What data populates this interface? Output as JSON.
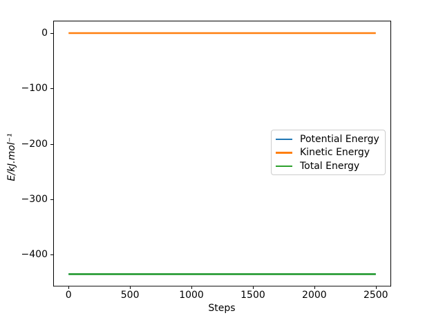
{
  "figure": {
    "background": "#ffffff",
    "spine_color": "#000000"
  },
  "chart_data": {
    "type": "line",
    "title": "",
    "xlabel": "Steps",
    "ylabel": "E/kJ.mol⁻¹",
    "xlim": [
      -125,
      2625
    ],
    "ylim": [
      -456.75,
      21.75
    ],
    "grid": false,
    "x": [
      0,
      2500
    ],
    "series": [
      {
        "name": "Potential Energy",
        "color": "#1f77b4",
        "values": [
          -435,
          -435
        ]
      },
      {
        "name": "Kinetic Energy",
        "color": "#ff7f0e",
        "values": [
          0,
          0
        ]
      },
      {
        "name": "Total Energy",
        "color": "#2ca02c",
        "values": [
          -435,
          -435
        ]
      }
    ],
    "xticks": {
      "values": [
        0,
        500,
        1000,
        1500,
        2000,
        2500
      ],
      "labels": [
        "0",
        "500",
        "1000",
        "1500",
        "2000",
        "2500"
      ]
    },
    "yticks": {
      "values": [
        0,
        -100,
        -200,
        -300,
        -400
      ],
      "labels": [
        "0",
        "−100",
        "−200",
        "−300",
        "−400"
      ]
    },
    "legend": {
      "position": "center right",
      "entries": [
        "Potential Energy",
        "Kinetic Energy",
        "Total Energy"
      ]
    }
  }
}
